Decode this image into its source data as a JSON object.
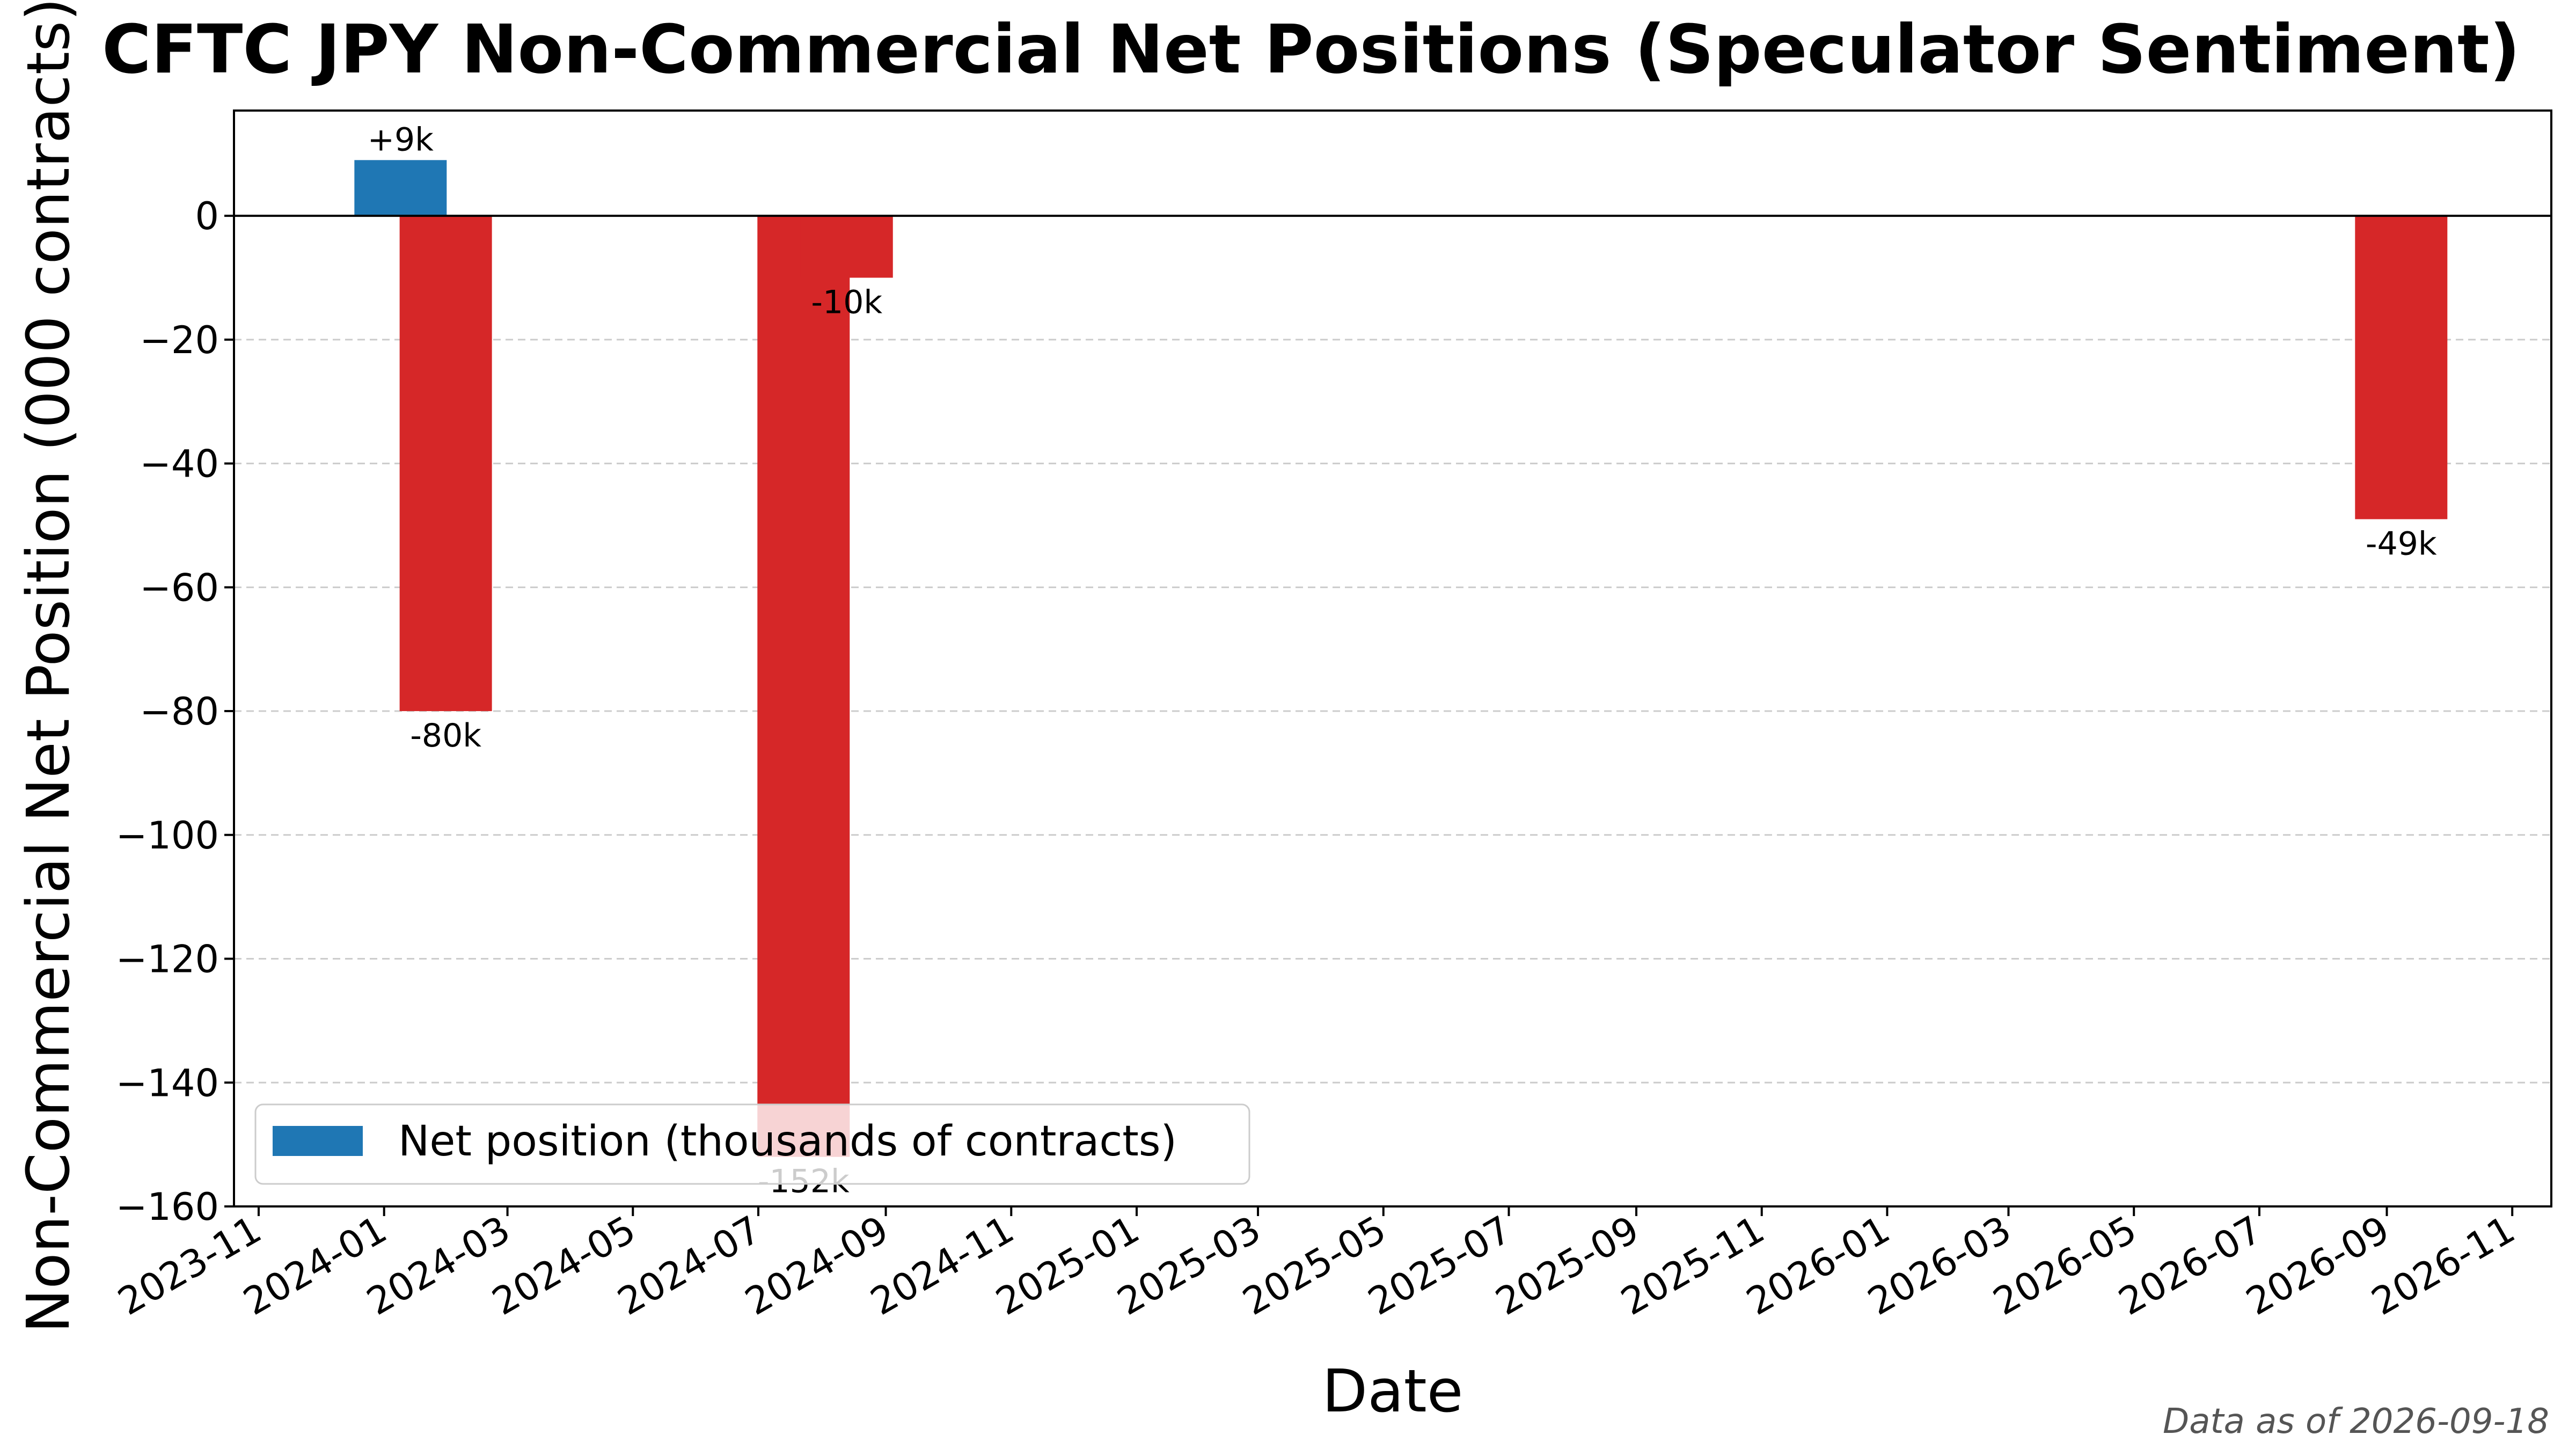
{
  "chart_data": {
    "type": "bar",
    "title": "CFTC JPY Non-Commercial Net Positions (Speculator Sentiment)",
    "xlabel": "Date",
    "ylabel": "Non-Commercial Net Position (000 contracts)",
    "xlim": [
      "2023-10-20",
      "2026-11-20"
    ],
    "ylim": [
      -160,
      17
    ],
    "yticks": [
      0,
      -20,
      -40,
      -60,
      -80,
      -100,
      -120,
      -140,
      -160
    ],
    "xticks": [
      "2023-11",
      "2024-01",
      "2024-03",
      "2024-05",
      "2024-07",
      "2024-09",
      "2024-11",
      "2025-01",
      "2025-03",
      "2025-05",
      "2025-07",
      "2025-09",
      "2025-11",
      "2026-01",
      "2026-03",
      "2026-05",
      "2026-07",
      "2026-09",
      "2026-11"
    ],
    "grid": "horizontal-dashed",
    "legend_position": "lower-left",
    "series": [
      {
        "name": "Net position (thousands of contracts)",
        "x": [
          "2024-01-09",
          "2024-01-31",
          "2024-07-23",
          "2024-08-13",
          "2026-09-08"
        ],
        "values": [
          9,
          -80,
          -152,
          -10,
          -49
        ],
        "labels": [
          "+9k",
          "-80k",
          "-152k",
          "-10k",
          "-49k"
        ]
      }
    ],
    "colors": {
      "positive": "#1f77b4",
      "negative": "#d62728",
      "zero_line": "#000000",
      "grid": "#cccccc"
    }
  },
  "footnote": "Data as of 2026-09-18"
}
